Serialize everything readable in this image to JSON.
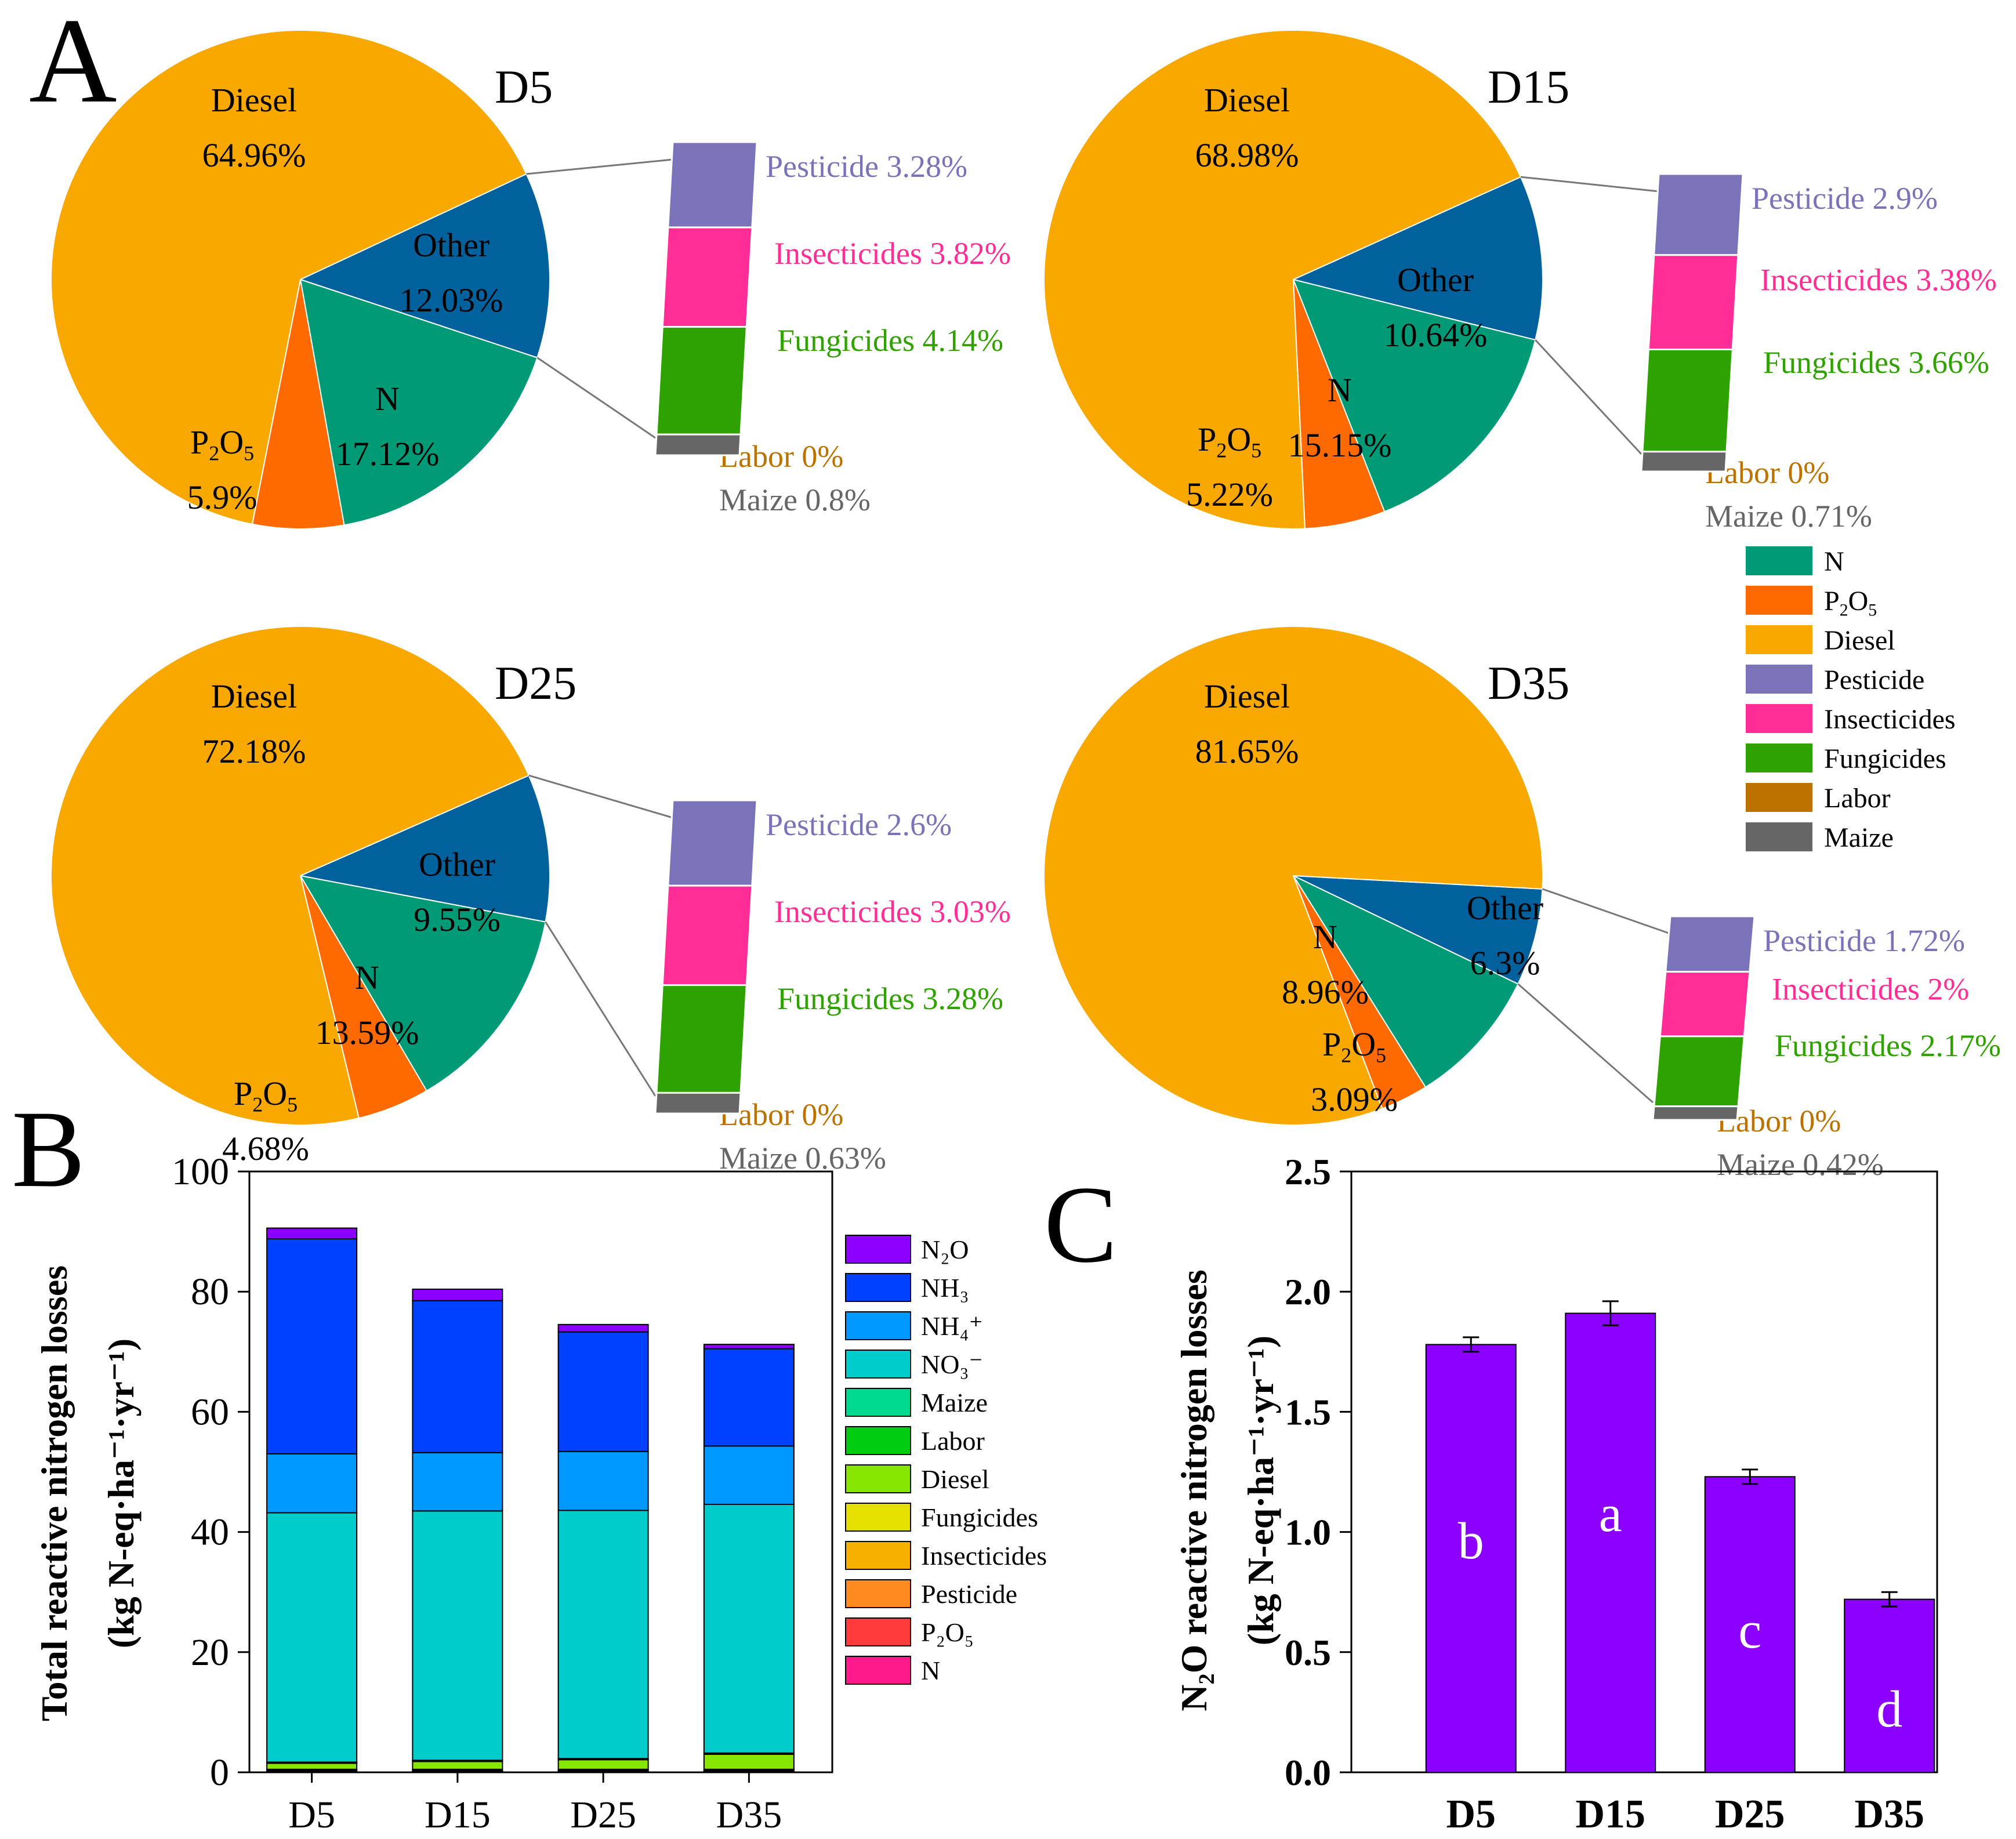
{
  "panels": {
    "A": "A",
    "B": "B",
    "C": "C"
  },
  "colors": {
    "N": "#009a77",
    "P2O5": "#ff6a00",
    "Diesel": "#f9a800",
    "Other": "#00619c",
    "Pesticide": "#7b73ba",
    "Insecticides": "#ff2d95",
    "Fungicides": "#2ea300",
    "Labor": "#bd7200",
    "Maize": "#666666"
  },
  "chart_data": [
    {
      "type": "pie",
      "panel": "A",
      "title": "D5",
      "slices": [
        {
          "name": "Diesel",
          "label": "Diesel",
          "pct": "64.96%",
          "value": 64.96
        },
        {
          "name": "Other",
          "label": "Other",
          "pct": "12.03%",
          "value": 12.03
        },
        {
          "name": "N",
          "label": "N",
          "pct": "17.12%",
          "value": 17.12
        },
        {
          "name": "P2O5",
          "label": "P2O5",
          "pct": "5.9%",
          "value": 5.9
        }
      ],
      "other_breakdown": [
        {
          "name": "Pesticide",
          "label": "Pesticide 3.28%",
          "value": 3.28
        },
        {
          "name": "Insecticides",
          "label": "Insecticides 3.82%",
          "value": 3.82
        },
        {
          "name": "Fungicides",
          "label": "Fungicides 4.14%",
          "value": 4.14
        },
        {
          "name": "Labor",
          "label": "Labor 0%",
          "value": 0
        },
        {
          "name": "Maize",
          "label": "Maize 0.8%",
          "value": 0.8
        }
      ]
    },
    {
      "type": "pie",
      "panel": "A",
      "title": "D15",
      "slices": [
        {
          "name": "Diesel",
          "label": "Diesel",
          "pct": "68.98%",
          "value": 68.98
        },
        {
          "name": "Other",
          "label": "Other",
          "pct": "10.64%",
          "value": 10.64
        },
        {
          "name": "N",
          "label": "N",
          "pct": "15.15%",
          "value": 15.15
        },
        {
          "name": "P2O5",
          "label": "P2O5",
          "pct": "5.22%",
          "value": 5.22
        }
      ],
      "other_breakdown": [
        {
          "name": "Pesticide",
          "label": "Pesticide 2.9%",
          "value": 2.9
        },
        {
          "name": "Insecticides",
          "label": "Insecticides 3.38%",
          "value": 3.38
        },
        {
          "name": "Fungicides",
          "label": "Fungicides 3.66%",
          "value": 3.66
        },
        {
          "name": "Labor",
          "label": "Labor 0%",
          "value": 0
        },
        {
          "name": "Maize",
          "label": "Maize 0.71%",
          "value": 0.71
        }
      ]
    },
    {
      "type": "pie",
      "panel": "A",
      "title": "D25",
      "slices": [
        {
          "name": "Diesel",
          "label": "Diesel",
          "pct": "72.18%",
          "value": 72.18
        },
        {
          "name": "Other",
          "label": "Other",
          "pct": "9.55%",
          "value": 9.55
        },
        {
          "name": "N",
          "label": "N",
          "pct": "13.59%",
          "value": 13.59
        },
        {
          "name": "P2O5",
          "label": "P2O5",
          "pct": "4.68%",
          "value": 4.68
        }
      ],
      "other_breakdown": [
        {
          "name": "Pesticide",
          "label": "Pesticide 2.6%",
          "value": 2.6
        },
        {
          "name": "Insecticides",
          "label": "Insecticides 3.03%",
          "value": 3.03
        },
        {
          "name": "Fungicides",
          "label": "Fungicides 3.28%",
          "value": 3.28
        },
        {
          "name": "Labor",
          "label": "Labor 0%",
          "value": 0
        },
        {
          "name": "Maize",
          "label": "Maize 0.63%",
          "value": 0.63
        }
      ]
    },
    {
      "type": "pie",
      "panel": "A",
      "title": "D35",
      "slices": [
        {
          "name": "Diesel",
          "label": "Diesel",
          "pct": "81.65%",
          "value": 81.65
        },
        {
          "name": "Other",
          "label": "Other",
          "pct": "6.3%",
          "value": 6.3
        },
        {
          "name": "N",
          "label": "N",
          "pct": "8.96%",
          "value": 8.96
        },
        {
          "name": "P2O5",
          "label": "P2O5",
          "pct": "3.09%",
          "value": 3.09
        }
      ],
      "other_breakdown": [
        {
          "name": "Pesticide",
          "label": "Pesticide 1.72%",
          "value": 1.72
        },
        {
          "name": "Insecticides",
          "label": "Insecticides 2%",
          "value": 2
        },
        {
          "name": "Fungicides",
          "label": "Fungicides 2.17%",
          "value": 2.17
        },
        {
          "name": "Labor",
          "label": "Labor 0%",
          "value": 0
        },
        {
          "name": "Maize",
          "label": "Maize 0.42%",
          "value": 0.42
        }
      ]
    },
    {
      "type": "bar",
      "panel": "B",
      "stacked": true,
      "ylabel_line1": "Total reactive nitrogen losses",
      "ylabel_line2": "(kg N-eq·ha⁻¹·yr⁻¹)",
      "categories": [
        "D5",
        "D15",
        "D25",
        "D35"
      ],
      "ylim": [
        0,
        100
      ],
      "yticks": [
        "0",
        "20",
        "40",
        "60",
        "80",
        "100"
      ],
      "series": [
        {
          "key": "N",
          "name": "N",
          "color": "#ff1a8c",
          "values": [
            0.1,
            0.1,
            0.1,
            0.1
          ]
        },
        {
          "key": "P2O5",
          "name": "P₂O₅",
          "color": "#ff3b3b",
          "values": [
            0.1,
            0.1,
            0.1,
            0.1
          ]
        },
        {
          "key": "Pesticide",
          "name": "Pesticide",
          "color": "#ff8a1f",
          "values": [
            0.1,
            0.1,
            0.1,
            0.1
          ]
        },
        {
          "key": "Insecticides",
          "name": "Insecticides",
          "color": "#f5b000",
          "values": [
            0.1,
            0.1,
            0.1,
            0.1
          ]
        },
        {
          "key": "Fungicides",
          "name": "Fungicides",
          "color": "#e5e000",
          "values": [
            0.1,
            0.1,
            0.1,
            0.1
          ]
        },
        {
          "key": "Diesel",
          "name": "Diesel",
          "color": "#86e600",
          "values": [
            1.0,
            1.3,
            1.6,
            2.5
          ]
        },
        {
          "key": "Labor",
          "name": "Labor",
          "color": "#00cc11",
          "values": [
            0.1,
            0.1,
            0.1,
            0.1
          ]
        },
        {
          "key": "Maize",
          "name": "Maize",
          "color": "#00d990",
          "values": [
            0.1,
            0.1,
            0.1,
            0.1
          ]
        },
        {
          "key": "NO3",
          "name": "NO₃⁻",
          "color": "#00cccc",
          "values": [
            41.5,
            41.5,
            41.3,
            41.4
          ]
        },
        {
          "key": "NH4",
          "name": "NH₄⁺",
          "color": "#0099ff",
          "values": [
            9.8,
            9.7,
            9.8,
            9.7
          ]
        },
        {
          "key": "NH3",
          "name": "NH₃",
          "color": "#0040ff",
          "values": [
            35.8,
            25.3,
            19.9,
            16.2
          ]
        },
        {
          "key": "N2O",
          "name": "N₂O",
          "color": "#8b00ff",
          "values": [
            1.78,
            1.91,
            1.23,
            0.72
          ]
        }
      ]
    },
    {
      "type": "bar",
      "panel": "C",
      "ylabel_line1": "N₂O reactive nitrogen losses",
      "ylabel_line2": "(kg N-eq·ha⁻¹·yr⁻¹)",
      "categories": [
        "D5",
        "D15",
        "D25",
        "D35"
      ],
      "values": [
        1.78,
        1.91,
        1.23,
        0.72
      ],
      "errors": [
        0.03,
        0.05,
        0.03,
        0.03
      ],
      "letters": [
        "b",
        "a",
        "c",
        "d"
      ],
      "ylim": [
        0,
        2.5
      ],
      "yticks": [
        "0.0",
        "0.5",
        "1.0",
        "1.5",
        "2.0",
        "2.5"
      ],
      "color": "#8b00ff"
    }
  ]
}
